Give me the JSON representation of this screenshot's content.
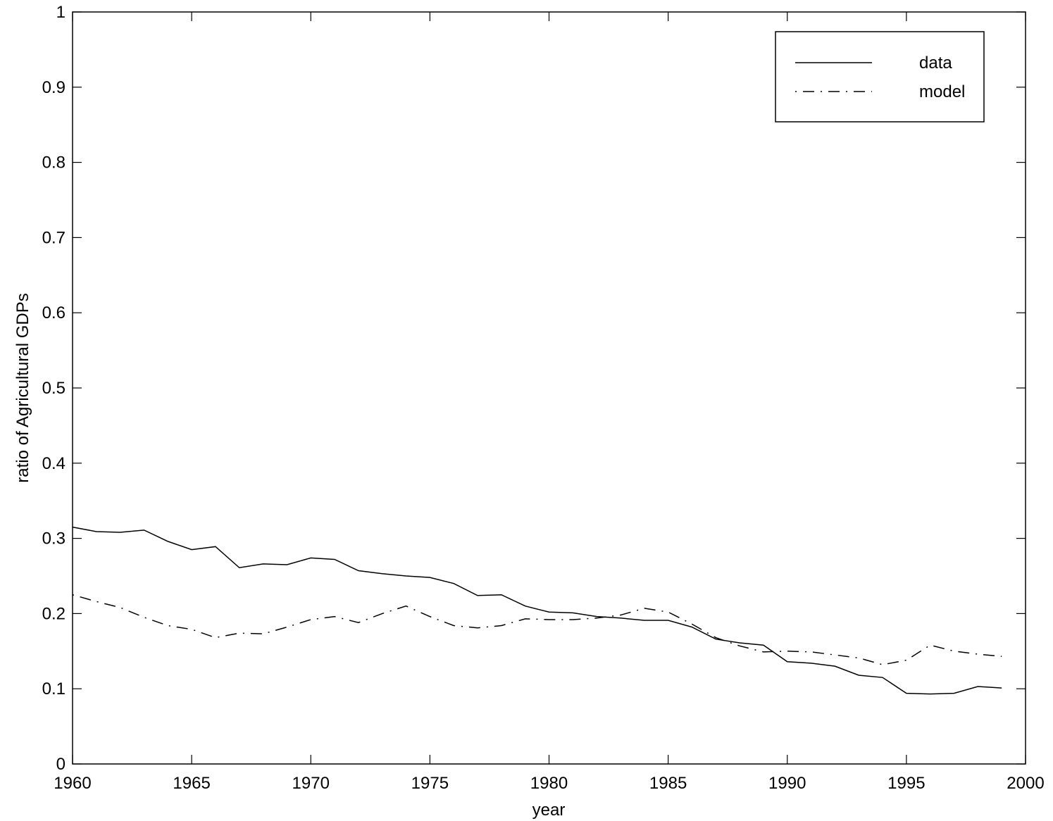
{
  "chart_data": {
    "type": "line",
    "xlabel": "year",
    "ylabel": "ratio of Agricultural GDPs",
    "x": [
      1960,
      1961,
      1962,
      1963,
      1964,
      1965,
      1966,
      1967,
      1968,
      1969,
      1970,
      1971,
      1972,
      1973,
      1974,
      1975,
      1976,
      1977,
      1978,
      1979,
      1980,
      1981,
      1982,
      1983,
      1984,
      1985,
      1986,
      1987,
      1988,
      1989,
      1990,
      1991,
      1992,
      1993,
      1994,
      1995,
      1996,
      1997,
      1998,
      1999
    ],
    "series": [
      {
        "name": "data",
        "color": "#000000",
        "linestyle": "solid",
        "values": [
          0.315,
          0.309,
          0.308,
          0.311,
          0.296,
          0.285,
          0.289,
          0.261,
          0.266,
          0.265,
          0.274,
          0.272,
          0.257,
          0.253,
          0.25,
          0.248,
          0.24,
          0.224,
          0.225,
          0.21,
          0.202,
          0.201,
          0.196,
          0.194,
          0.191,
          0.191,
          0.182,
          0.166,
          0.161,
          0.158,
          0.136,
          0.134,
          0.13,
          0.118,
          0.115,
          0.094,
          0.093,
          0.094,
          0.103,
          0.101
        ]
      },
      {
        "name": "model",
        "color": "#000000",
        "linestyle": "dashdot",
        "values": [
          0.225,
          0.216,
          0.208,
          0.195,
          0.184,
          0.179,
          0.168,
          0.174,
          0.173,
          0.182,
          0.192,
          0.196,
          0.188,
          0.2,
          0.21,
          0.196,
          0.184,
          0.181,
          0.184,
          0.193,
          0.192,
          0.192,
          0.194,
          0.198,
          0.207,
          0.202,
          0.186,
          0.168,
          0.157,
          0.149,
          0.15,
          0.149,
          0.145,
          0.141,
          0.132,
          0.138,
          0.158,
          0.15,
          0.146,
          0.143
        ]
      }
    ],
    "xlim": [
      1960,
      2000
    ],
    "xticks": [
      1960,
      1965,
      1970,
      1975,
      1980,
      1985,
      1990,
      1995,
      2000
    ],
    "ylim": [
      0,
      1
    ],
    "yticks": [
      0,
      0.1,
      0.2,
      0.3,
      0.4,
      0.5,
      0.6,
      0.7,
      0.8,
      0.9,
      1
    ],
    "grid": false,
    "legend": "upper right"
  }
}
